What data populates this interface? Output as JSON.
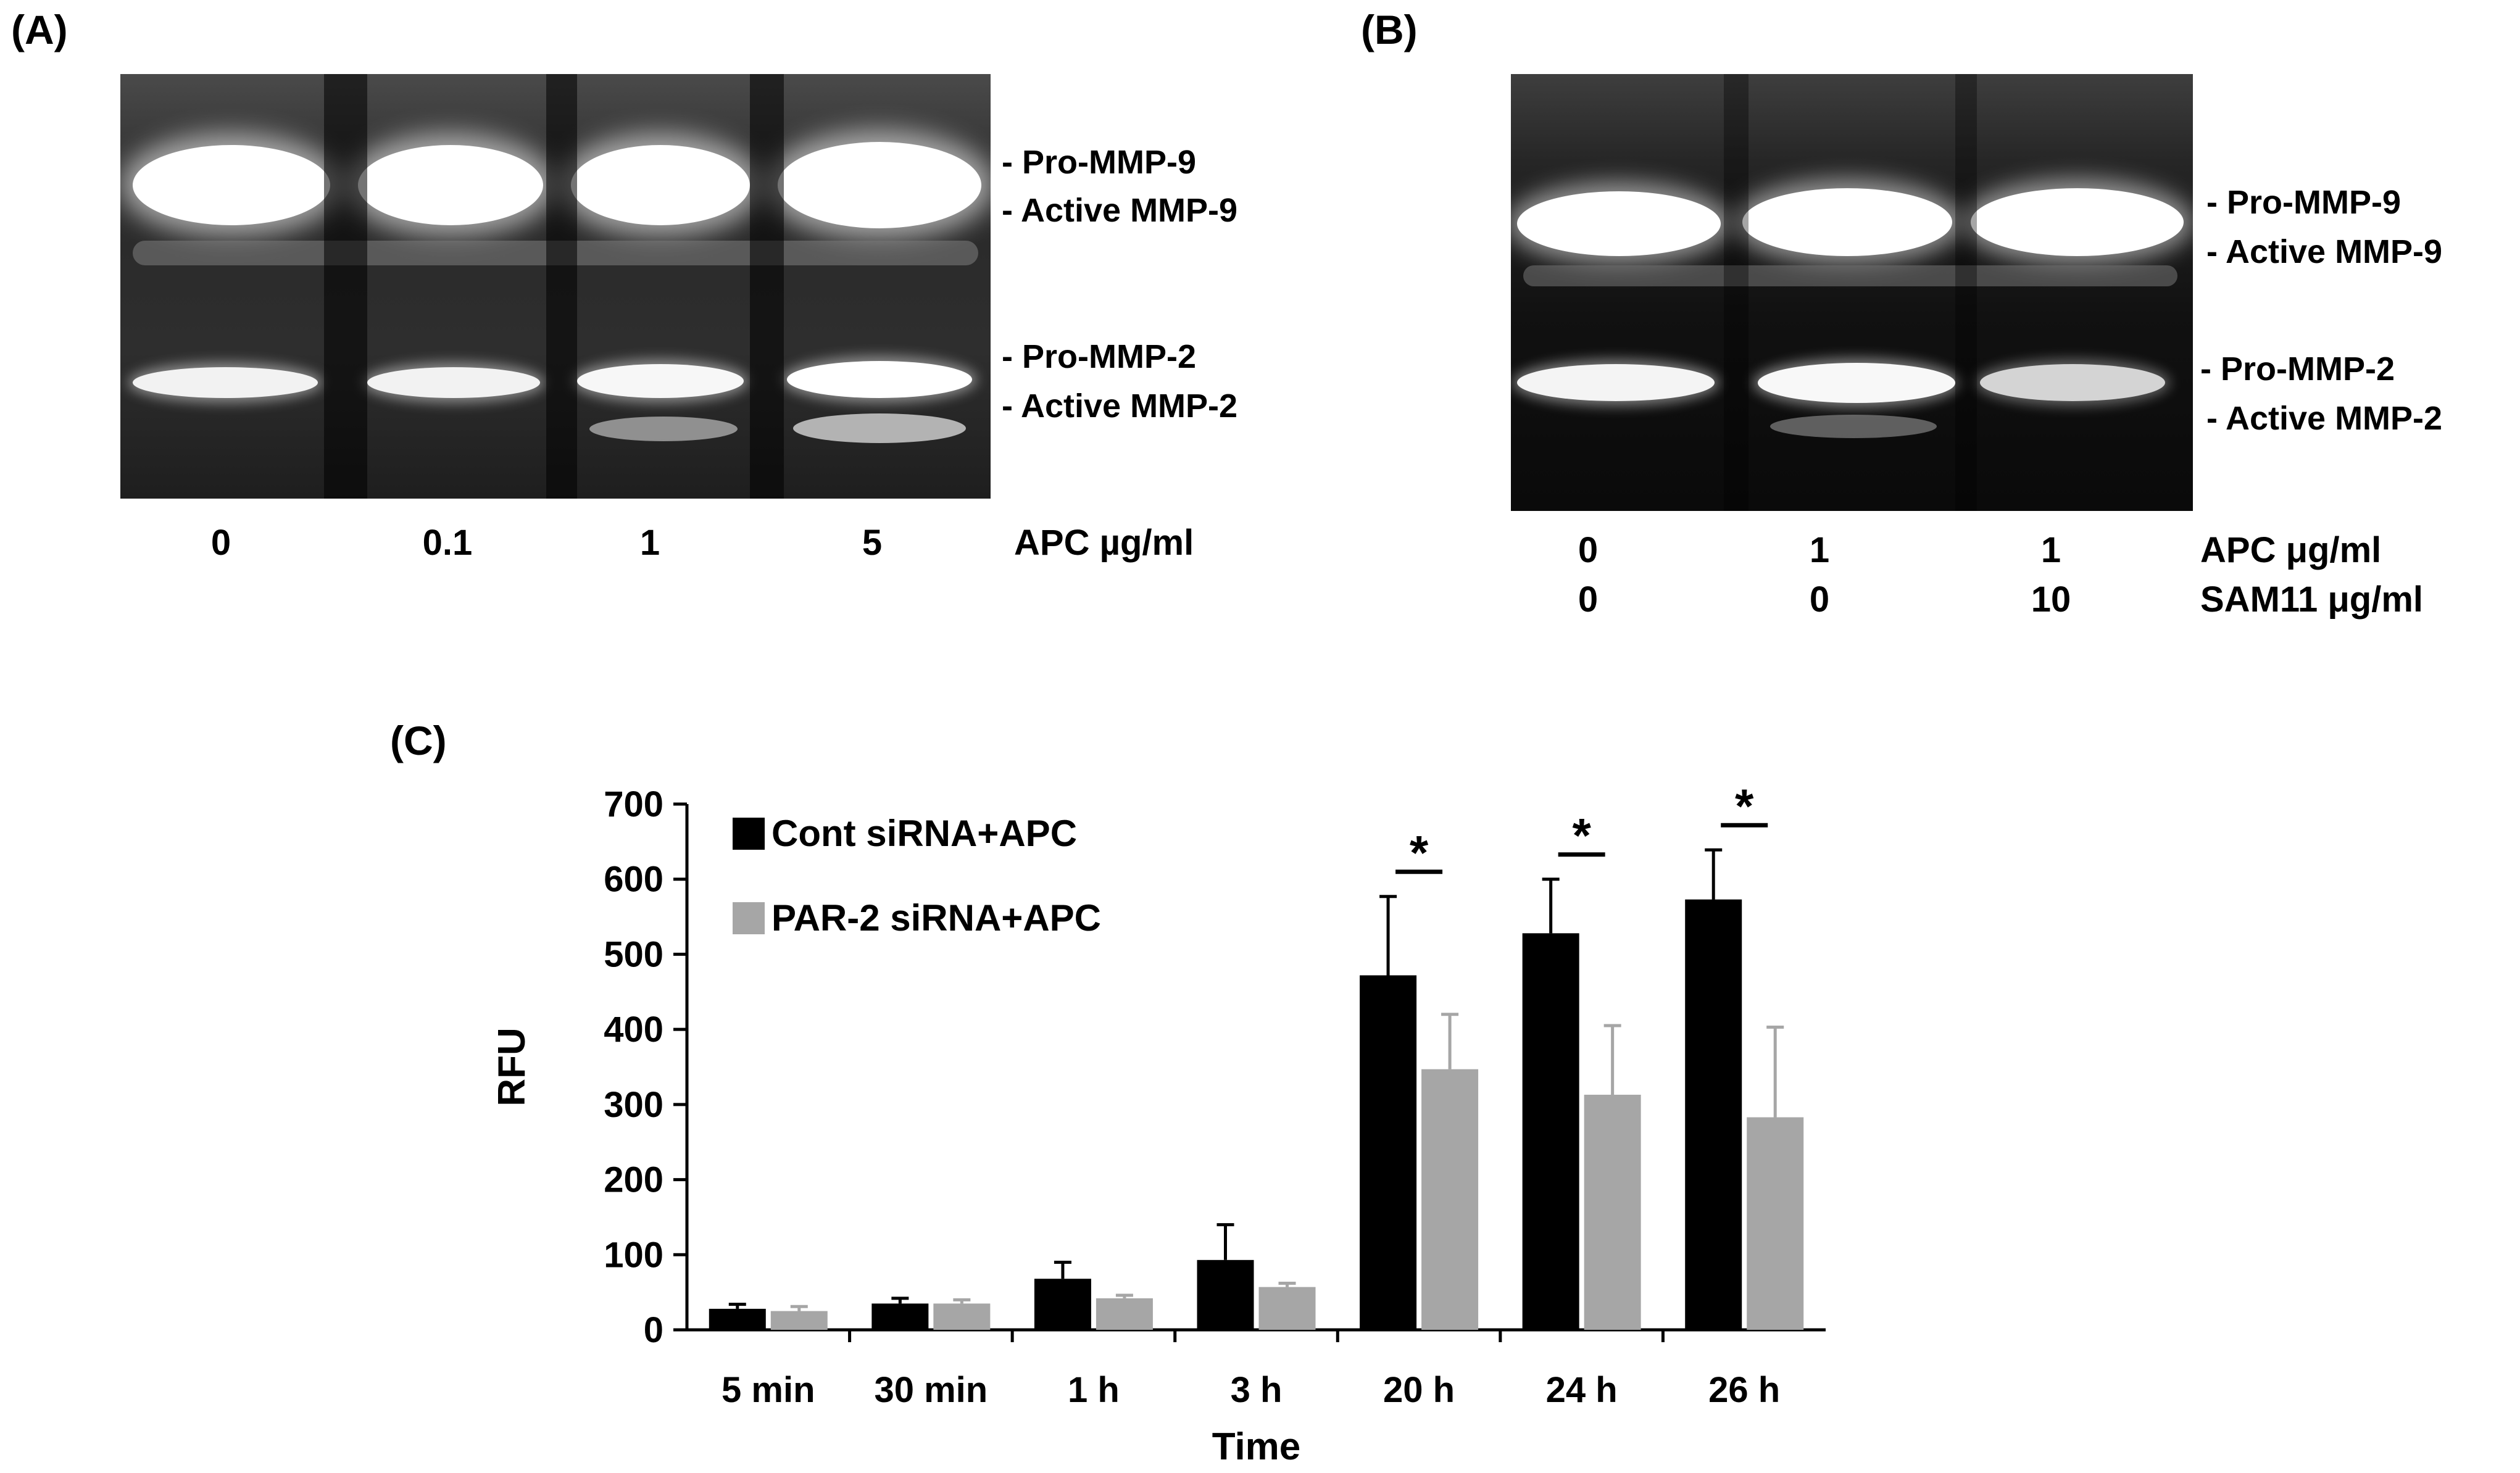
{
  "panels": {
    "a": {
      "letter": "(A)",
      "band_labels": [
        "- Pro-MMP-9",
        "- Active  MMP-9",
        "- Pro-MMP-2",
        "- Active  MMP-2"
      ],
      "lanes": [
        "0",
        "0.1",
        "1",
        "5"
      ],
      "condition_label": "APC  µg/ml"
    },
    "b": {
      "letter": "(B)",
      "band_labels": [
        "- Pro-MMP-9",
        "- Active  MMP-9",
        "- Pro-MMP-2",
        "- Active  MMP-2"
      ],
      "apc_values": [
        "0",
        "1",
        "1"
      ],
      "sam11_values": [
        "0",
        "0",
        "10"
      ],
      "apc_label": "APC  μg/ml",
      "sam11_label": "SAM11  μg/ml"
    },
    "c": {
      "letter": "(C)"
    }
  },
  "chart_data": {
    "type": "bar",
    "categories": [
      "5 min",
      "30 min",
      "1 h",
      "3 h",
      "20 h",
      "24 h",
      "26 h"
    ],
    "series": [
      {
        "name": "Cont siRNA+APC",
        "color": "#000000",
        "values": [
          28,
          35,
          68,
          93,
          472,
          528,
          573
        ],
        "errors": [
          6,
          7,
          22,
          47,
          105,
          72,
          66
        ]
      },
      {
        "name": "PAR-2 siRNA+APC",
        "color": "#a6a6a6",
        "values": [
          25,
          35,
          42,
          57,
          347,
          313,
          283
        ],
        "errors": [
          6,
          5,
          4,
          5,
          73,
          92,
          120
        ]
      }
    ],
    "significance": [
      "",
      "",
      "",
      "",
      "*",
      "*",
      "*"
    ],
    "xlabel": "Time",
    "ylabel": "RFU",
    "ylim": [
      0,
      700
    ],
    "yticks": [
      0,
      100,
      200,
      300,
      400,
      500,
      600,
      700
    ],
    "legend_position": "top-left",
    "grid": false
  }
}
